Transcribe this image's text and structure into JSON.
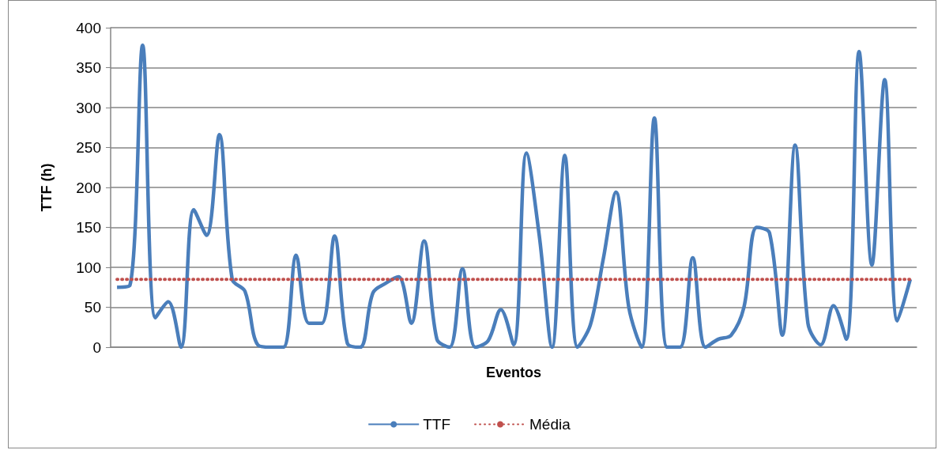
{
  "chart_data": {
    "type": "line",
    "xlabel": "Eventos",
    "ylabel": "TTF (h)",
    "categories": [
      null,
      null,
      null,
      null,
      null,
      null,
      null,
      null,
      null,
      null,
      null,
      null,
      null,
      null,
      null,
      null,
      null,
      null,
      null,
      null,
      null,
      null,
      null,
      null,
      null,
      null,
      null,
      null,
      null,
      null,
      null,
      null,
      null,
      null,
      null,
      null,
      null,
      null,
      null,
      null,
      null,
      null,
      null,
      null,
      null,
      null,
      null,
      null,
      null,
      null,
      null,
      null,
      null,
      null,
      null,
      null,
      null,
      null,
      null,
      null,
      null,
      null,
      null
    ],
    "series": [
      {
        "name": "TTF",
        "color": "#4a7ebb",
        "line_style": "solid",
        "values": [
          75,
          77,
          378,
          37,
          57,
          0,
          172,
          140,
          266,
          85,
          70,
          3,
          0,
          0,
          115,
          30,
          30,
          139,
          5,
          0,
          68,
          80,
          88,
          30,
          133,
          10,
          0,
          98,
          0,
          8,
          47,
          3,
          243,
          140,
          0,
          240,
          0,
          28,
          110,
          194,
          50,
          0,
          287,
          0,
          0,
          112,
          0,
          10,
          15,
          50,
          150,
          143,
          15,
          253,
          30,
          3,
          52,
          10,
          370,
          103,
          335,
          33,
          85
        ]
      },
      {
        "name": "Média",
        "color": "#c0504d",
        "line_style": "dotted",
        "values": [
          85,
          85,
          85,
          85,
          85,
          85,
          85,
          85,
          85,
          85,
          85,
          85,
          85,
          85,
          85,
          85,
          85,
          85,
          85,
          85,
          85,
          85,
          85,
          85,
          85,
          85,
          85,
          85,
          85,
          85,
          85,
          85,
          85,
          85,
          85,
          85,
          85,
          85,
          85,
          85,
          85,
          85,
          85,
          85,
          85,
          85,
          85,
          85,
          85,
          85,
          85,
          85,
          85,
          85,
          85,
          85,
          85,
          85,
          85,
          85,
          85,
          85,
          85
        ]
      }
    ],
    "ylim": [
      0,
      400
    ],
    "yticks": [
      0,
      50,
      100,
      150,
      200,
      250,
      300,
      350,
      400
    ],
    "grid": "y",
    "legend": "bottom",
    "marker": "none"
  }
}
